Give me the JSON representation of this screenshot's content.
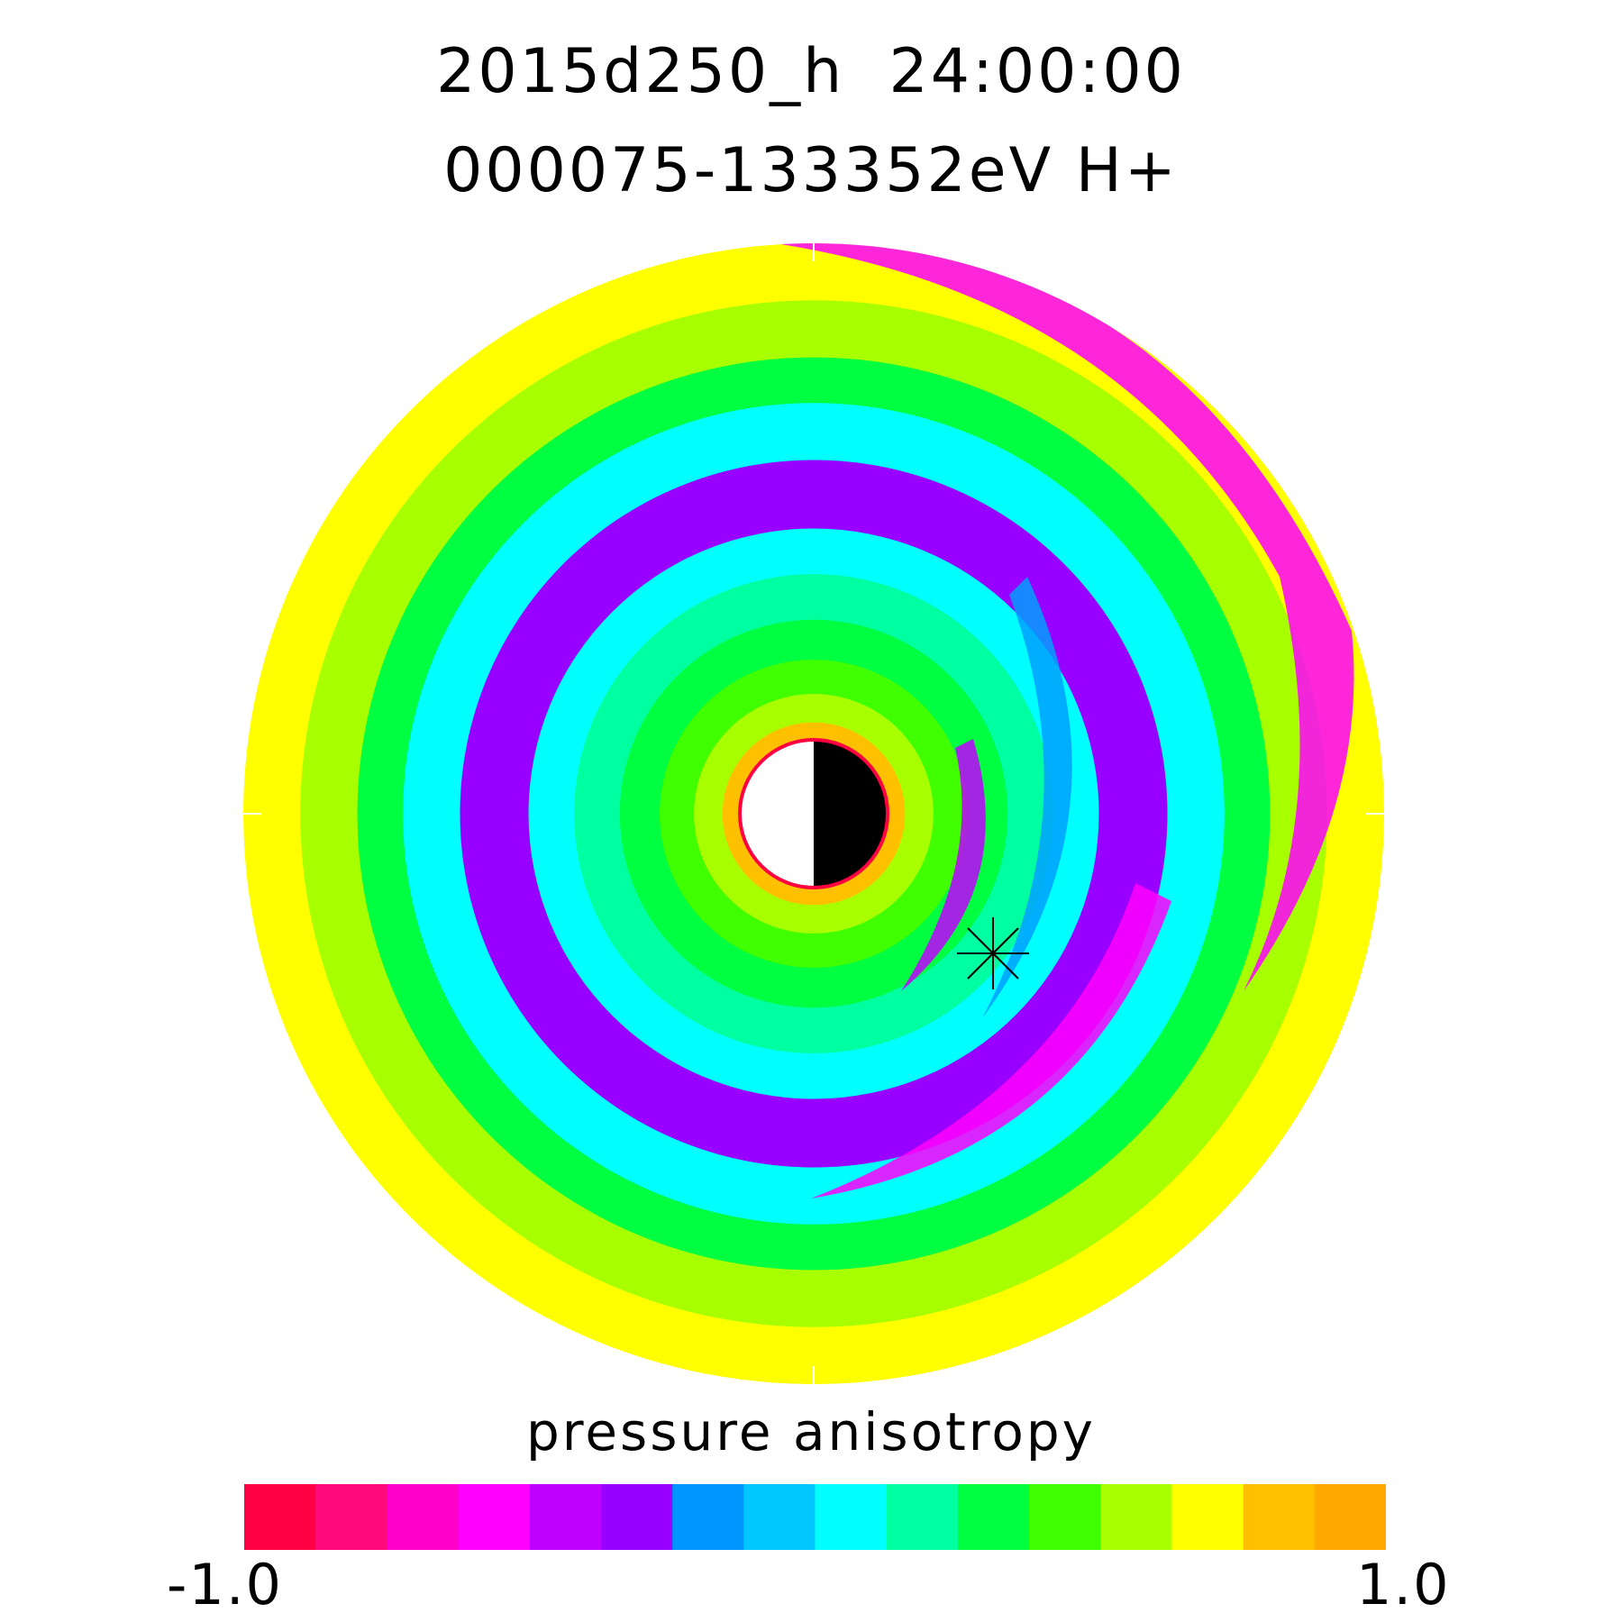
{
  "title": {
    "line1": "2015d250_h  24:00:00",
    "line2": "000075-133352eV H+"
  },
  "chart_data": {
    "type": "heatmap",
    "projection": "polar (equatorial plane)",
    "quantity": "pressure anisotropy",
    "species": "H+",
    "energy_range": "000075-133352eV",
    "time": "2015d250_h 24:00:00",
    "colorbar": {
      "label": "pressure anisotropy",
      "min": -1.0,
      "max": 1.0,
      "min_label": "-1.0",
      "max_label": "1.0",
      "colors": [
        "#ff0044",
        "#ff0a7a",
        "#ff00c8",
        "#ff00ff",
        "#c000ff",
        "#9800ff",
        "#0096ff",
        "#00c8ff",
        "#00ffff",
        "#00ffa0",
        "#00ff40",
        "#40ff00",
        "#a8ff00",
        "#ffff00",
        "#ffc000",
        "#ffa800"
      ]
    },
    "rings": [
      {
        "r": 1.0,
        "value": 0.7
      },
      {
        "r": 0.9,
        "value": 0.55
      },
      {
        "r": 0.8,
        "value": 0.35
      },
      {
        "r": 0.72,
        "value": 0.05
      },
      {
        "r": 0.62,
        "value": -0.3
      },
      {
        "r": 0.5,
        "value": 0.05
      },
      {
        "r": 0.42,
        "value": 0.2
      },
      {
        "r": 0.34,
        "value": 0.3
      },
      {
        "r": 0.27,
        "value": 0.4
      },
      {
        "r": 0.21,
        "value": 0.55
      },
      {
        "r": 0.16,
        "value": 0.75
      }
    ],
    "inner_boundary": {
      "day_side": "white",
      "night_side": "black",
      "outline": "#ff0040"
    },
    "marker": {
      "symbol": "asterisk",
      "r": 0.34,
      "angle_deg": -60
    }
  }
}
